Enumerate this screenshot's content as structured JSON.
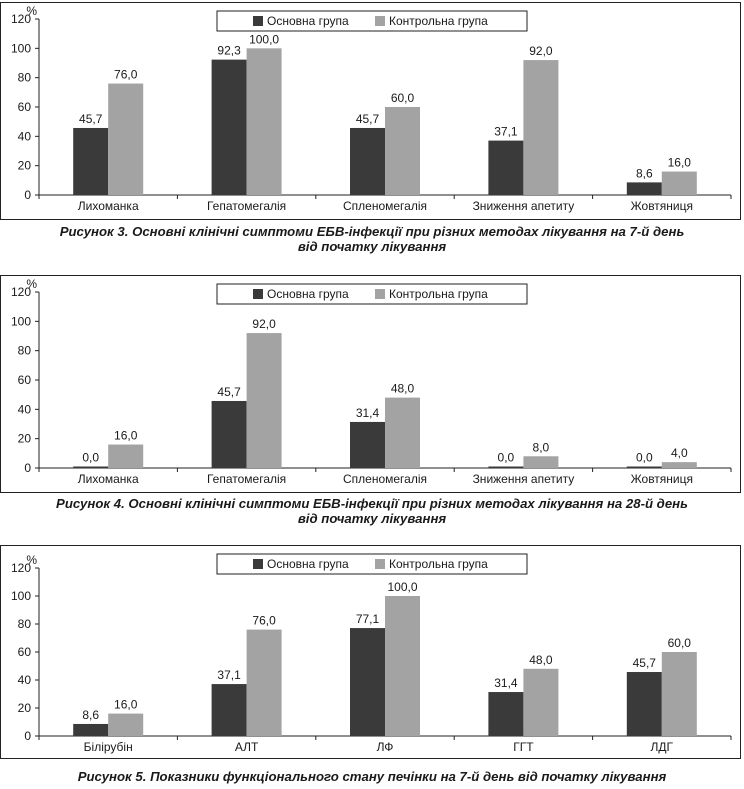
{
  "colors": {
    "main": "#3a3a3a",
    "control": "#a3a3a3",
    "axis": "#222222"
  },
  "legend": {
    "main": "Основна група",
    "control": "Контрольна група"
  },
  "chart_data": [
    {
      "type": "bar",
      "ylabel": "%",
      "ylim": [
        0,
        120
      ],
      "yticks": [
        0,
        20,
        40,
        60,
        80,
        100,
        120
      ],
      "categories": [
        "Лихоманка",
        "Гепатомегалія",
        "Спленомегалія",
        "Зниження апетиту",
        "Жовтяниця"
      ],
      "series": [
        {
          "name": "Основна група",
          "values": [
            45.7,
            92.3,
            45.7,
            37.1,
            8.6
          ],
          "labels": [
            "45,7",
            "92,3",
            "45,7",
            "37,1",
            "8,6"
          ]
        },
        {
          "name": "Контрольна група",
          "values": [
            76.0,
            100.0,
            60.0,
            92.0,
            16.0
          ],
          "labels": [
            "76,0",
            "100,0",
            "60,0",
            "92,0",
            "16,0"
          ]
        }
      ],
      "legend_position": "top-center",
      "caption_lines": [
        "Рисунок 3. Основні клінічні симптоми ЕБВ-інфекції при різних методах лікування на 7-й день",
        "від початку лікування"
      ]
    },
    {
      "type": "bar",
      "ylabel": "%",
      "ylim": [
        0,
        120
      ],
      "yticks": [
        0,
        20,
        40,
        60,
        80,
        100,
        120
      ],
      "categories": [
        "Лихоманка",
        "Гепатомегалія",
        "Спленомегалія",
        "Зниження апетиту",
        "Жовтяниця"
      ],
      "series": [
        {
          "name": "Основна група",
          "values": [
            0.0,
            45.7,
            31.4,
            0.0,
            0.0
          ],
          "labels": [
            "0,0",
            "45,7",
            "31,4",
            "0,0",
            "0,0"
          ]
        },
        {
          "name": "Контрольна група",
          "values": [
            16.0,
            92.0,
            48.0,
            8.0,
            4.0
          ],
          "labels": [
            "16,0",
            "92,0",
            "48,0",
            "8,0",
            "4,0"
          ]
        }
      ],
      "legend_position": "top-center",
      "caption_lines": [
        "Рисунок 4.  Основні клінічні симптоми ЕБВ-інфекції при різних методах лікування на 28-й день",
        "від початку лікування"
      ]
    },
    {
      "type": "bar",
      "ylabel": "%",
      "ylim": [
        0,
        120
      ],
      "yticks": [
        0,
        20,
        40,
        60,
        80,
        100,
        120
      ],
      "categories": [
        "Білірубін",
        "АЛТ",
        "ЛФ",
        "ГГТ",
        "ЛДГ"
      ],
      "series": [
        {
          "name": "Основна група",
          "values": [
            8.6,
            37.1,
            77.1,
            31.4,
            45.7
          ],
          "labels": [
            "8,6",
            "37,1",
            "77,1",
            "31,4",
            "45,7"
          ]
        },
        {
          "name": "Контрольна група",
          "values": [
            16.0,
            76.0,
            100.0,
            48.0,
            60.0
          ],
          "labels": [
            "16,0",
            "76,0",
            "100,0",
            "48,0",
            "60,0"
          ]
        }
      ],
      "legend_position": "top-center",
      "caption_lines": [
        "Рисунок 5. Показники функціонального стану печінки на 7-й день від початку лікування"
      ]
    }
  ]
}
